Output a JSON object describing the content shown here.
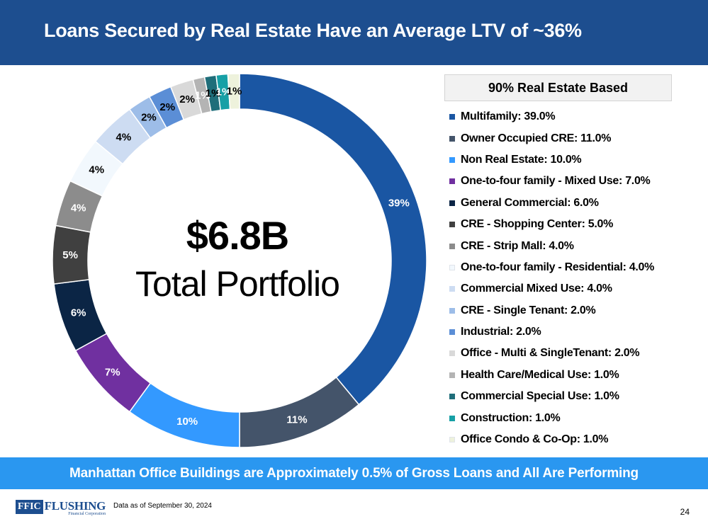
{
  "header": {
    "title": "Loans Secured by Real Estate Have an Average LTV of ~36%"
  },
  "center": {
    "amount": "$6.8B",
    "caption": "Total Portfolio"
  },
  "legend_header": "90% Real Estate Based",
  "chart_data": {
    "type": "pie",
    "variant": "donut",
    "unit": "%",
    "slices": [
      {
        "name": "Multifamily",
        "value": 39.0,
        "label": "39%",
        "legend": "Multifamily: 39.0%",
        "color": "#1a56a3",
        "label_color": "#ffffff"
      },
      {
        "name": "Owner Occupied CRE",
        "value": 11.0,
        "label": "11%",
        "legend": "Owner Occupied CRE: 11.0%",
        "color": "#44546a",
        "label_color": "#ffffff"
      },
      {
        "name": "Non Real Estate",
        "value": 10.0,
        "label": "10%",
        "legend": "Non Real Estate: 10.0%",
        "color": "#3399ff",
        "label_color": "#ffffff"
      },
      {
        "name": "One-to-four family - Mixed Use",
        "value": 7.0,
        "label": "7%",
        "legend": "One-to-four family - Mixed Use: 7.0%",
        "color": "#7030a0",
        "label_color": "#ffffff"
      },
      {
        "name": "General Commercial",
        "value": 6.0,
        "label": "6%",
        "legend": "General Commercial: 6.0%",
        "color": "#0b2545",
        "label_color": "#ffffff"
      },
      {
        "name": "CRE - Shopping Center",
        "value": 5.0,
        "label": "5%",
        "legend": "CRE - Shopping Center: 5.0%",
        "color": "#404040",
        "label_color": "#ffffff"
      },
      {
        "name": "CRE - Strip Mall",
        "value": 4.0,
        "label": "4%",
        "legend": "CRE - Strip Mall: 4.0%",
        "color": "#8c8c8c",
        "label_color": "#ffffff"
      },
      {
        "name": "One-to-four family - Residential",
        "value": 4.0,
        "label": "4%",
        "legend": "One-to-four family - Residential: 4.0%",
        "color": "#f2f8fd",
        "label_color": "#000000"
      },
      {
        "name": "Commercial Mixed Use",
        "value": 4.0,
        "label": "4%",
        "legend": "Commercial Mixed Use: 4.0%",
        "color": "#cddcf2",
        "label_color": "#000000"
      },
      {
        "name": "CRE - Single Tenant",
        "value": 2.0,
        "label": "2%",
        "legend": "CRE - Single Tenant: 2.0%",
        "color": "#9dbde8",
        "label_color": "#000000"
      },
      {
        "name": "Industrial",
        "value": 2.0,
        "label": "2%",
        "legend": "Industrial: 2.0%",
        "color": "#5b8ed6",
        "label_color": "#000000"
      },
      {
        "name": "Office - Multi & SingleTenant",
        "value": 2.0,
        "label": "2%",
        "legend": "Office - Multi & SingleTenant: 2.0%",
        "color": "#d9d9d9",
        "label_color": "#000000"
      },
      {
        "name": "Health Care/Medical Use",
        "value": 1.0,
        "label": "1%",
        "legend": "Health Care/Medical Use: 1.0%",
        "color": "#b4b4b4",
        "label_color": "#ffffff"
      },
      {
        "name": "Commercial Special Use",
        "value": 1.0,
        "label": "1%",
        "legend": "Commercial Special Use: 1.0%",
        "color": "#1f6e7a",
        "label_color": "#000000"
      },
      {
        "name": "Construction",
        "value": 1.0,
        "label": "1%",
        "legend": "Construction: 1.0%",
        "color": "#17a0a6",
        "label_color": "#ffffff"
      },
      {
        "name": "Office Condo & Co-Op",
        "value": 1.0,
        "label": "1%",
        "legend": "Office Condo & Co-Op: 1.0%",
        "color": "#eef2dc",
        "label_color": "#000000"
      }
    ]
  },
  "banner": {
    "text": "Manhattan Office Buildings are Approximately 0.5% of Gross Loans and All Are Performing"
  },
  "footer": {
    "logo_mark": "FFIC",
    "logo_name": "FLUSHING",
    "logo_sub": "Financial Corporation",
    "note": "Data as of September 30, 2024",
    "page": "24"
  }
}
